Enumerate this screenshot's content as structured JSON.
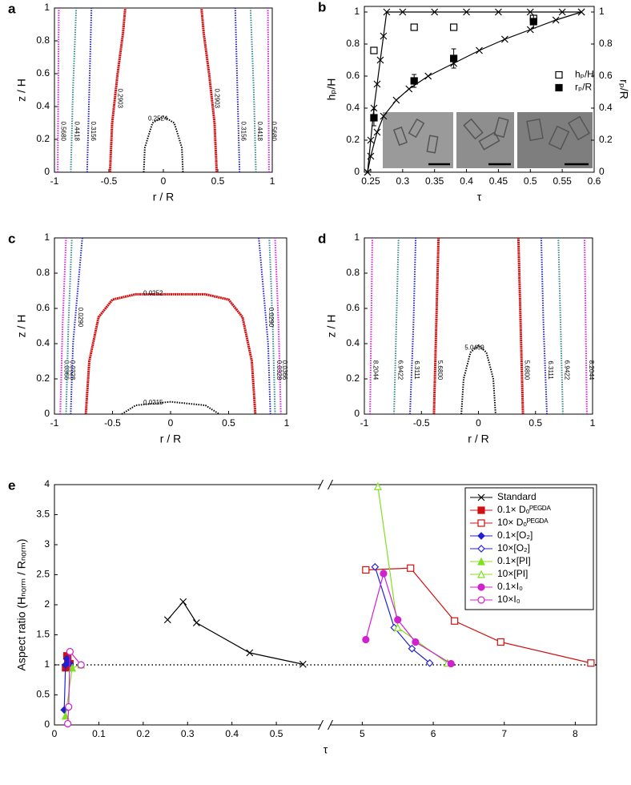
{
  "chart_data": [
    {
      "type": "contour",
      "panel_label": "a",
      "xlabel": "r / R",
      "ylabel": "z / H",
      "xlim": [
        -1,
        1
      ],
      "ylim": [
        0,
        1
      ],
      "xticks": [
        -1,
        -0.5,
        0,
        0.5,
        1
      ],
      "yticks": [
        0,
        0.2,
        0.4,
        0.6,
        0.8,
        1
      ],
      "series": [
        {
          "name": "0.5680",
          "color": "#e020e0",
          "x": [
            -0.97,
            -0.965,
            -0.96
          ],
          "values": [
            0,
            0.5,
            1
          ]
        },
        {
          "name": "0.5680",
          "color": "#e020e0",
          "x": [
            0.97,
            0.965,
            0.96
          ],
          "values": [
            0,
            0.5,
            1
          ]
        },
        {
          "name": "0.4418",
          "color": "#3a8a8a",
          "x": [
            -0.85,
            -0.83,
            -0.8
          ],
          "values": [
            0,
            0.5,
            1
          ]
        },
        {
          "name": "0.4418",
          "color": "#3a8a8a",
          "x": [
            0.85,
            0.83,
            0.8
          ],
          "values": [
            0,
            0.5,
            1
          ]
        },
        {
          "name": "0.3156",
          "color": "#2020d0",
          "x": [
            -0.7,
            -0.68,
            -0.66
          ],
          "values": [
            0,
            0.5,
            1
          ]
        },
        {
          "name": "0.3156",
          "color": "#2020d0",
          "x": [
            0.7,
            0.68,
            0.66
          ],
          "values": [
            0,
            0.5,
            1
          ]
        },
        {
          "name": "0.2903",
          "color": "#d01010",
          "x": [
            -0.49,
            -0.47,
            -0.42,
            -0.37,
            -0.35
          ],
          "values": [
            0,
            0.3,
            0.6,
            0.85,
            1
          ]
        },
        {
          "name": "0.2903",
          "color": "#d01010",
          "x": [
            0.49,
            0.47,
            0.42,
            0.37,
            0.35
          ],
          "values": [
            0,
            0.3,
            0.6,
            0.85,
            1
          ]
        },
        {
          "name": "0.2524",
          "color": "#000000",
          "x": [
            -0.18,
            -0.17,
            -0.1,
            0,
            0.1,
            0.17,
            0.18
          ],
          "values": [
            0,
            0.15,
            0.3,
            0.34,
            0.3,
            0.15,
            0
          ]
        }
      ]
    },
    {
      "type": "line",
      "panel_label": "b",
      "xlabel": "τ",
      "ylabel": "hₚ/H",
      "y2label": "rₚ/R",
      "xlim": [
        0.24,
        0.6
      ],
      "ylim": [
        0,
        1.035
      ],
      "y2lim": [
        0,
        1.035
      ],
      "xticks": [
        0.25,
        0.3,
        0.35,
        0.4,
        0.45,
        0.5,
        0.55,
        0.6
      ],
      "yticks": [
        0,
        0.2,
        0.4,
        0.6,
        0.8,
        1
      ],
      "y2ticks": [
        0,
        0.2,
        0.4,
        0.6,
        0.8,
        1
      ],
      "legend": "center right",
      "series": [
        {
          "color": "#000000",
          "marker": "x",
          "x": [
            0.245,
            0.25,
            0.255,
            0.26,
            0.265,
            0.27,
            0.275,
            0.3,
            0.35,
            0.4,
            0.45,
            0.5,
            0.55,
            0.58
          ],
          "values": [
            0,
            0.2,
            0.4,
            0.55,
            0.7,
            0.85,
            1,
            1,
            1,
            1,
            1,
            1,
            1,
            1
          ]
        },
        {
          "color": "#000000",
          "marker": "x",
          "axis": "y2",
          "x": [
            0.245,
            0.25,
            0.26,
            0.27,
            0.29,
            0.31,
            0.34,
            0.38,
            0.42,
            0.46,
            0.5,
            0.54,
            0.58
          ],
          "values": [
            0,
            0.1,
            0.25,
            0.35,
            0.45,
            0.52,
            0.6,
            0.68,
            0.76,
            0.83,
            0.89,
            0.95,
            1
          ]
        },
        {
          "name": "hₚ/H",
          "color": "#000000",
          "marker": "square-open",
          "noline": true,
          "x": [
            0.255,
            0.318,
            0.38,
            0.505
          ],
          "values": [
            0.76,
            0.905,
            0.905,
            0.96
          ],
          "errors": [
            0.02,
            0.015,
            0.02,
            0.02
          ]
        },
        {
          "name": "rₚ/R",
          "color": "#000000",
          "marker": "square",
          "noline": true,
          "axis": "y2",
          "x": [
            0.255,
            0.318,
            0.38,
            0.505
          ],
          "values": [
            0.34,
            0.57,
            0.71,
            0.94
          ],
          "errors": [
            0.05,
            0.04,
            0.06,
            0.04
          ]
        }
      ]
    },
    {
      "type": "contour",
      "panel_label": "c",
      "xlabel": "r / R",
      "ylabel": "z / H",
      "xlim": [
        -1,
        1
      ],
      "ylim": [
        0,
        1
      ],
      "xticks": [
        -1,
        -0.5,
        0,
        0.5,
        1
      ],
      "yticks": [
        0,
        0.2,
        0.4,
        0.6,
        0.8,
        1
      ],
      "series": [
        {
          "name": "0.0366",
          "color": "#e020e0",
          "x": [
            -0.95,
            -0.93,
            -0.9
          ],
          "values": [
            0,
            0.5,
            1
          ]
        },
        {
          "name": "0.0366",
          "color": "#e020e0",
          "x": [
            0.95,
            0.93,
            0.9
          ],
          "values": [
            0,
            0.5,
            1
          ]
        },
        {
          "name": "0.0328",
          "color": "#3a8a8a",
          "x": [
            -0.9,
            -0.88,
            -0.85
          ],
          "values": [
            0,
            0.5,
            1
          ]
        },
        {
          "name": "0.0328",
          "color": "#3a8a8a",
          "x": [
            0.9,
            0.88,
            0.85
          ],
          "values": [
            0,
            0.5,
            1
          ]
        },
        {
          "name": "0.0290",
          "color": "#2020d0",
          "x": [
            -0.86,
            -0.84,
            -0.8,
            -0.76
          ],
          "values": [
            0,
            0.4,
            0.7,
            1
          ]
        },
        {
          "name": "0.0290",
          "color": "#2020d0",
          "x": [
            0.86,
            0.84,
            0.8,
            0.76
          ],
          "values": [
            0,
            0.4,
            0.7,
            1
          ]
        },
        {
          "name": "0.0252",
          "color": "#d01010",
          "x": [
            -0.73,
            -0.7,
            -0.62,
            -0.5,
            -0.3,
            0,
            0.3,
            0.5,
            0.62,
            0.7,
            0.73
          ],
          "values": [
            0,
            0.3,
            0.55,
            0.65,
            0.68,
            0.68,
            0.68,
            0.65,
            0.55,
            0.3,
            0
          ]
        },
        {
          "name": "0.0215",
          "color": "#000000",
          "x": [
            -0.42,
            -0.3,
            0,
            0.3,
            0.42
          ],
          "values": [
            0,
            0.05,
            0.07,
            0.05,
            0
          ]
        }
      ]
    },
    {
      "type": "contour",
      "panel_label": "d",
      "xlabel": "r / R",
      "ylabel": "z / H",
      "xlim": [
        -1,
        1
      ],
      "ylim": [
        0,
        1
      ],
      "xticks": [
        -1,
        -0.5,
        0,
        0.5,
        1
      ],
      "yticks": [
        0,
        0.2,
        0.4,
        0.6,
        0.8,
        1
      ],
      "series": [
        {
          "name": "8.2044",
          "color": "#e020e0",
          "x": [
            -0.95,
            -0.94,
            -0.93
          ],
          "values": [
            0,
            0.5,
            1
          ]
        },
        {
          "name": "8.2044",
          "color": "#e020e0",
          "x": [
            0.95,
            0.94,
            0.93
          ],
          "values": [
            0,
            0.5,
            1
          ]
        },
        {
          "name": "6.9422",
          "color": "#3a8a8a",
          "x": [
            -0.74,
            -0.72,
            -0.7
          ],
          "values": [
            0,
            0.5,
            1
          ]
        },
        {
          "name": "6.9422",
          "color": "#3a8a8a",
          "x": [
            0.74,
            0.72,
            0.7
          ],
          "values": [
            0,
            0.5,
            1
          ]
        },
        {
          "name": "6.3111",
          "color": "#2020d0",
          "x": [
            -0.6,
            -0.57,
            -0.55
          ],
          "values": [
            0,
            0.5,
            1
          ]
        },
        {
          "name": "6.3111",
          "color": "#2020d0",
          "x": [
            0.6,
            0.57,
            0.55
          ],
          "values": [
            0,
            0.5,
            1
          ]
        },
        {
          "name": "5.6800",
          "color": "#d01010",
          "x": [
            -0.39,
            -0.37,
            -0.35
          ],
          "values": [
            0,
            0.5,
            1
          ]
        },
        {
          "name": "5.6800",
          "color": "#d01010",
          "x": [
            0.39,
            0.37,
            0.35
          ],
          "values": [
            0,
            0.5,
            1
          ]
        },
        {
          "name": "5.0469",
          "color": "#000000",
          "x": [
            -0.15,
            -0.13,
            -0.07,
            0,
            0.07,
            0.13,
            0.15
          ],
          "values": [
            0,
            0.2,
            0.35,
            0.39,
            0.35,
            0.2,
            0
          ]
        }
      ]
    },
    {
      "type": "line",
      "panel_label": "e",
      "xlabel": "τ",
      "ylabel": "Aspect ratio (Hₙₒᵣₘ / Rₙₒᵣₘ)",
      "xlim_segments": [
        [
          0,
          0.6
        ],
        [
          4.55,
          8.3
        ]
      ],
      "ylim": [
        0,
        4
      ],
      "xticks": [
        0,
        0.1,
        0.2,
        0.3,
        0.4,
        0.5,
        5,
        6,
        7,
        8
      ],
      "yticks": [
        0,
        0.5,
        1,
        1.5,
        2,
        2.5,
        3,
        3.5,
        4
      ],
      "hline": 1,
      "legend": "upper right",
      "series": [
        {
          "name": "Standard",
          "color": "#000000",
          "marker": "x",
          "x": [
            0.255,
            0.29,
            0.32,
            0.44,
            0.56
          ],
          "values": [
            1.75,
            2.05,
            1.7,
            1.2,
            1.01
          ]
        },
        {
          "name": "0.1× Dₒᴾᴱᴳᴰᴬ",
          "color": "#d01010",
          "marker": "square",
          "x": [
            0.025,
            0.028,
            0.03,
            0.035
          ],
          "values": [
            0.95,
            1.15,
            1.1,
            1.02
          ]
        },
        {
          "name": "10× Dₒᴾᴱᴳᴰᴬ",
          "color": "#d01010",
          "marker": "square-open",
          "x": [
            5.05,
            5.68,
            6.3,
            6.95,
            8.22
          ],
          "values": [
            2.58,
            2.61,
            1.73,
            1.38,
            1.03
          ]
        },
        {
          "name": "0.1×[O₂]",
          "color": "#2020d0",
          "marker": "diamond",
          "x": [
            0.022,
            0.025,
            0.028,
            0.035
          ],
          "values": [
            0.25,
            1.0,
            1.1,
            1.02
          ]
        },
        {
          "name": "10×[O₂]",
          "color": "#2020d0",
          "marker": "diamond-open",
          "x": [
            5.18,
            5.45,
            5.7,
            5.95
          ],
          "values": [
            2.63,
            1.62,
            1.27,
            1.03
          ]
        },
        {
          "name": "0.1×[PI]",
          "color": "#80e020",
          "marker": "triangle",
          "x": [
            0.025,
            0.04,
            0.06
          ],
          "values": [
            0.15,
            0.95,
            1.0
          ]
        },
        {
          "name": "10×[PI]",
          "color": "#80e020",
          "marker": "triangle-open",
          "x": [
            5.22,
            5.5,
            6.2
          ],
          "values": [
            3.97,
            1.62,
            1.03
          ]
        },
        {
          "name": "0.1×I₀",
          "color": "#d020d0",
          "marker": "circle",
          "x": [
            5.05,
            5.3,
            5.5,
            5.75,
            6.25
          ],
          "values": [
            1.42,
            2.52,
            1.75,
            1.38,
            1.02
          ]
        },
        {
          "name": "10×I₀",
          "color": "#d020d0",
          "marker": "circle-open",
          "x": [
            0.03,
            0.032,
            0.035,
            0.06
          ],
          "values": [
            0.02,
            0.3,
            1.22,
            1.0
          ]
        }
      ]
    }
  ]
}
